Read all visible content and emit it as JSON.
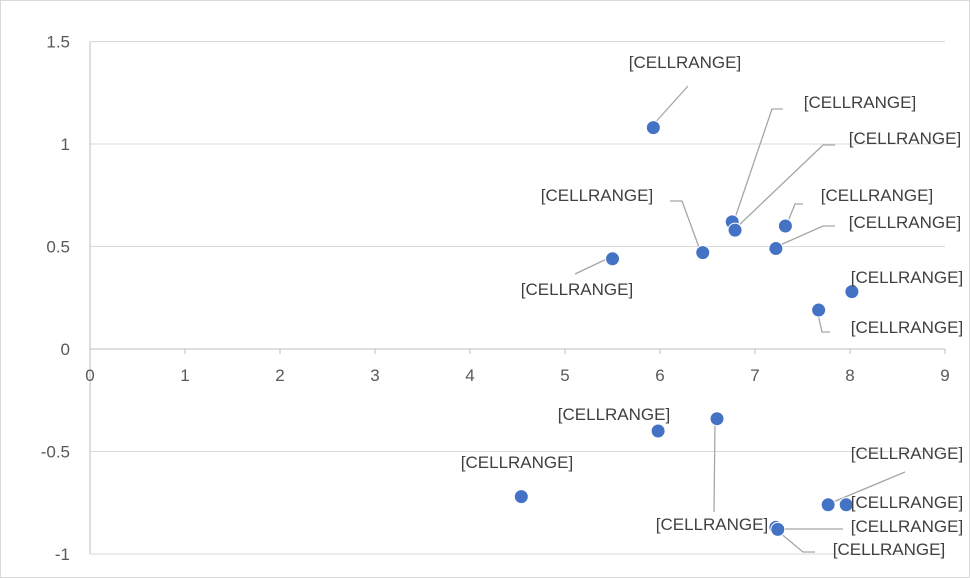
{
  "chart_data": {
    "type": "scatter",
    "title": "",
    "xlabel": "",
    "ylabel": "",
    "xlim": [
      0,
      9
    ],
    "ylim": [
      -1,
      1.5
    ],
    "x_ticks": [
      "0",
      "1",
      "2",
      "3",
      "4",
      "5",
      "6",
      "7",
      "8",
      "9"
    ],
    "y_ticks": [
      "1.5",
      "1",
      "0.5",
      "0",
      "-0.5",
      "-1"
    ],
    "grid": "horizontal",
    "marker_color": "#4472c4",
    "points": [
      {
        "x": 5.93,
        "y": 1.08,
        "label": "[CELLRANGE]"
      },
      {
        "x": 6.76,
        "y": 0.62,
        "label": "[CELLRANGE]"
      },
      {
        "x": 6.79,
        "y": 0.58,
        "label": "[CELLRANGE]"
      },
      {
        "x": 7.32,
        "y": 0.6,
        "label": "[CELLRANGE]"
      },
      {
        "x": 7.22,
        "y": 0.49,
        "label": "[CELLRANGE]"
      },
      {
        "x": 6.45,
        "y": 0.47,
        "label": "[CELLRANGE]"
      },
      {
        "x": 5.5,
        "y": 0.44,
        "label": "[CELLRANGE]"
      },
      {
        "x": 8.02,
        "y": 0.28,
        "label": "[CELLRANGE]"
      },
      {
        "x": 7.67,
        "y": 0.19,
        "label": "[CELLRANGE]"
      },
      {
        "x": 5.98,
        "y": -0.4,
        "label": "[CELLRANGE]"
      },
      {
        "x": 6.6,
        "y": -0.34,
        "label": "[CELLRANGE]"
      },
      {
        "x": 4.54,
        "y": -0.72,
        "label": "[CELLRANGE]"
      },
      {
        "x": 7.77,
        "y": -0.76,
        "label": "[CELLRANGE]"
      },
      {
        "x": 7.96,
        "y": -0.76,
        "label": "[CELLRANGE]"
      },
      {
        "x": 7.22,
        "y": -0.87,
        "label": "[CELLRANGE]"
      },
      {
        "x": 7.24,
        "y": -0.88,
        "label": "[CELLRANGE]"
      }
    ]
  }
}
